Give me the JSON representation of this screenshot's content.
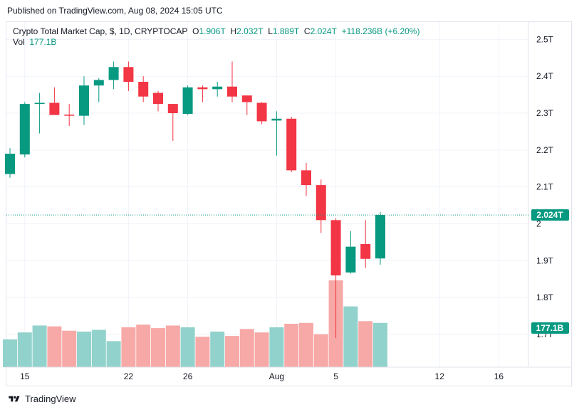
{
  "published": "Published on TradingView.com, Aug 08, 2024 15:05 UTC",
  "legend": {
    "symbol": "Crypto Total Market Cap, $, 1D, CRYPTOCAP",
    "o_label": "O",
    "o_value": "1.906T",
    "h_label": "H",
    "h_value": "2.032T",
    "l_label": "L",
    "l_value": "1.889T",
    "c_label": "C",
    "c_value": "2.024T",
    "change": "+118.236B (+6.20%)",
    "vol_label": "Vol",
    "vol_value": "177.1B"
  },
  "footer": {
    "brand": "TradingView"
  },
  "colors": {
    "up": "#089981",
    "down": "#f23645",
    "vol_up": "#92d2cc",
    "vol_down": "#f7a9a7",
    "grid": "#f0f3fa",
    "axis_text": "#131722"
  },
  "chart_data": {
    "type": "candlestick",
    "title": "Crypto Total Market Cap, $, 1D, CRYPTOCAP",
    "price_axis": {
      "ticks": [
        "2.5T",
        "2.4T",
        "2.3T",
        "2.2T",
        "2.1T",
        "2",
        "1.9T",
        "1.8T",
        "1.7T"
      ],
      "range": [
        1.7,
        2.52
      ]
    },
    "time_axis": {
      "ticks": [
        "15",
        "22",
        "26",
        "Aug",
        "5",
        "12",
        "16"
      ]
    },
    "last_price_label": "2.024T",
    "last_volume_label": "177.1B",
    "candles": [
      {
        "date": "Jul 14",
        "o": 2.135,
        "h": 2.205,
        "l": 2.125,
        "c": 2.19,
        "v": 32
      },
      {
        "date": "Jul 15",
        "o": 2.188,
        "h": 2.33,
        "l": 2.18,
        "c": 2.325,
        "v": 40
      },
      {
        "date": "Jul 16",
        "o": 2.325,
        "h": 2.355,
        "l": 2.245,
        "c": 2.328,
        "v": 48
      },
      {
        "date": "Jul 17",
        "o": 2.328,
        "h": 2.37,
        "l": 2.295,
        "c": 2.295,
        "v": 47
      },
      {
        "date": "Jul 18",
        "o": 2.296,
        "h": 2.325,
        "l": 2.265,
        "c": 2.293,
        "v": 42
      },
      {
        "date": "Jul 19",
        "o": 2.293,
        "h": 2.4,
        "l": 2.268,
        "c": 2.375,
        "v": 41
      },
      {
        "date": "Jul 20",
        "o": 2.375,
        "h": 2.395,
        "l": 2.33,
        "c": 2.39,
        "v": 43
      },
      {
        "date": "Jul 21",
        "o": 2.39,
        "h": 2.44,
        "l": 2.365,
        "c": 2.425,
        "v": 30
      },
      {
        "date": "Jul 22",
        "o": 2.425,
        "h": 2.44,
        "l": 2.36,
        "c": 2.385,
        "v": 46
      },
      {
        "date": "Jul 23",
        "o": 2.385,
        "h": 2.4,
        "l": 2.33,
        "c": 2.345,
        "v": 49
      },
      {
        "date": "Jul 24",
        "o": 2.355,
        "h": 2.36,
        "l": 2.305,
        "c": 2.325,
        "v": 45
      },
      {
        "date": "Jul 25",
        "o": 2.325,
        "h": 2.32,
        "l": 2.225,
        "c": 2.3,
        "v": 48
      },
      {
        "date": "Jul 26",
        "o": 2.298,
        "h": 2.375,
        "l": 2.295,
        "c": 2.37,
        "v": 46
      },
      {
        "date": "Jul 27",
        "o": 2.37,
        "h": 2.375,
        "l": 2.33,
        "c": 2.365,
        "v": 35
      },
      {
        "date": "Jul 28",
        "o": 2.365,
        "h": 2.385,
        "l": 2.345,
        "c": 2.372,
        "v": 41
      },
      {
        "date": "Jul 29",
        "o": 2.372,
        "h": 2.44,
        "l": 2.33,
        "c": 2.345,
        "v": 36
      },
      {
        "date": "Jul 30",
        "o": 2.348,
        "h": 2.345,
        "l": 2.295,
        "c": 2.33,
        "v": 44
      },
      {
        "date": "Jul 31",
        "o": 2.328,
        "h": 2.33,
        "l": 2.27,
        "c": 2.278,
        "v": 40
      },
      {
        "date": "Aug 01",
        "o": 2.28,
        "h": 2.305,
        "l": 2.185,
        "c": 2.285,
        "v": 46
      },
      {
        "date": "Aug 02",
        "o": 2.285,
        "h": 2.29,
        "l": 2.14,
        "c": 2.145,
        "v": 50
      },
      {
        "date": "Aug 03",
        "o": 2.145,
        "h": 2.165,
        "l": 2.075,
        "c": 2.105,
        "v": 51
      },
      {
        "date": "Aug 04",
        "o": 2.105,
        "h": 2.12,
        "l": 1.975,
        "c": 2.01,
        "v": 38
      },
      {
        "date": "Aug 05",
        "o": 2.01,
        "h": 2.015,
        "l": 1.69,
        "c": 1.86,
        "v": 100
      },
      {
        "date": "Aug 06",
        "o": 1.868,
        "h": 1.98,
        "l": 1.865,
        "c": 1.938,
        "v": 70
      },
      {
        "date": "Aug 07",
        "o": 1.945,
        "h": 2.01,
        "l": 1.88,
        "c": 1.905,
        "v": 53
      },
      {
        "date": "Aug 08",
        "o": 1.906,
        "h": 2.032,
        "l": 1.889,
        "c": 2.024,
        "v": 51
      }
    ]
  }
}
